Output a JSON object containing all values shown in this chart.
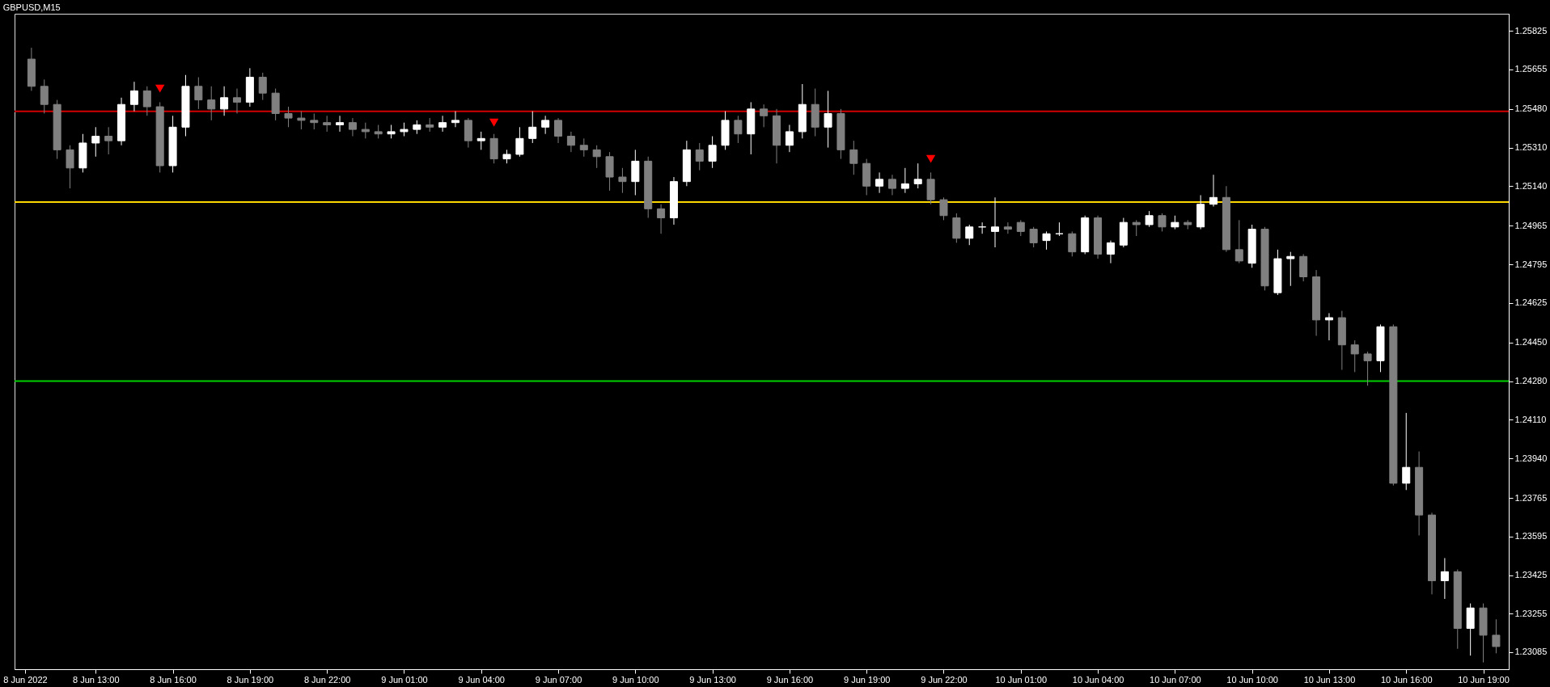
{
  "chart_data": {
    "type": "candlestick",
    "title": "GBPUSD,M15",
    "x": [
      "2022-06-08T10:30",
      "2022-06-08T11:00",
      "2022-06-08T11:30",
      "2022-06-08T12:00",
      "2022-06-08T12:30",
      "2022-06-08T13:00",
      "2022-06-08T13:30",
      "2022-06-08T14:00",
      "2022-06-08T14:30",
      "2022-06-08T15:00",
      "2022-06-08T15:30",
      "2022-06-08T16:00",
      "2022-06-08T16:30",
      "2022-06-08T17:00",
      "2022-06-08T17:30",
      "2022-06-08T18:00",
      "2022-06-08T18:30",
      "2022-06-08T19:00",
      "2022-06-08T19:30",
      "2022-06-08T20:00",
      "2022-06-08T20:30",
      "2022-06-08T21:00",
      "2022-06-08T21:30",
      "2022-06-08T22:00",
      "2022-06-08T22:30",
      "2022-06-08T23:00",
      "2022-06-08T23:30",
      "2022-06-09T00:00",
      "2022-06-09T00:30",
      "2022-06-09T01:00",
      "2022-06-09T01:30",
      "2022-06-09T02:00",
      "2022-06-09T02:30",
      "2022-06-09T03:00",
      "2022-06-09T03:30",
      "2022-06-09T04:00",
      "2022-06-09T04:30",
      "2022-06-09T05:00",
      "2022-06-09T05:30",
      "2022-06-09T06:00",
      "2022-06-09T06:30",
      "2022-06-09T07:00",
      "2022-06-09T07:30",
      "2022-06-09T08:00",
      "2022-06-09T08:30",
      "2022-06-09T09:00",
      "2022-06-09T09:30",
      "2022-06-09T10:00",
      "2022-06-09T10:30",
      "2022-06-09T11:00",
      "2022-06-09T11:30",
      "2022-06-09T12:00",
      "2022-06-09T12:30",
      "2022-06-09T13:00",
      "2022-06-09T13:30",
      "2022-06-09T14:00",
      "2022-06-09T14:30",
      "2022-06-09T15:00",
      "2022-06-09T15:30",
      "2022-06-09T16:00",
      "2022-06-09T16:30",
      "2022-06-09T17:00",
      "2022-06-09T17:30",
      "2022-06-09T18:00",
      "2022-06-09T18:30",
      "2022-06-09T19:00",
      "2022-06-09T19:30",
      "2022-06-09T20:00",
      "2022-06-09T20:30",
      "2022-06-09T21:00",
      "2022-06-09T21:30",
      "2022-06-09T22:00",
      "2022-06-09T22:30",
      "2022-06-09T23:00",
      "2022-06-09T23:30",
      "2022-06-10T00:00",
      "2022-06-10T00:30",
      "2022-06-10T01:00",
      "2022-06-10T01:30",
      "2022-06-10T02:00",
      "2022-06-10T02:30",
      "2022-06-10T03:00",
      "2022-06-10T03:30",
      "2022-06-10T04:00",
      "2022-06-10T04:30",
      "2022-06-10T05:00",
      "2022-06-10T05:30",
      "2022-06-10T06:00",
      "2022-06-10T06:30",
      "2022-06-10T07:00",
      "2022-06-10T07:30",
      "2022-06-10T08:00",
      "2022-06-10T08:30",
      "2022-06-10T09:00",
      "2022-06-10T09:30",
      "2022-06-10T10:00",
      "2022-06-10T10:30",
      "2022-06-10T11:00",
      "2022-06-10T11:30",
      "2022-06-10T12:00",
      "2022-06-10T12:30",
      "2022-06-10T13:00",
      "2022-06-10T13:30",
      "2022-06-10T14:00",
      "2022-06-10T14:30",
      "2022-06-10T15:00",
      "2022-06-10T15:30",
      "2022-06-10T16:00",
      "2022-06-10T16:30",
      "2022-06-10T17:00",
      "2022-06-10T17:30",
      "2022-06-10T18:00",
      "2022-06-10T18:30",
      "2022-06-10T19:00",
      "2022-06-10T19:30"
    ],
    "ohlc": [
      [
        1.257,
        1.2575,
        1.2556,
        1.2558
      ],
      [
        1.2558,
        1.2561,
        1.2546,
        1.255
      ],
      [
        1.255,
        1.2552,
        1.2526,
        1.253
      ],
      [
        1.253,
        1.2532,
        1.2513,
        1.2522
      ],
      [
        1.2522,
        1.2537,
        1.252,
        1.2533
      ],
      [
        1.2533,
        1.254,
        1.2527,
        1.2536
      ],
      [
        1.2536,
        1.254,
        1.2528,
        1.2534
      ],
      [
        1.2534,
        1.2553,
        1.2532,
        1.255
      ],
      [
        1.255,
        1.256,
        1.2547,
        1.2556
      ],
      [
        1.2556,
        1.2558,
        1.2545,
        1.2549
      ],
      [
        1.2549,
        1.2551,
        1.252,
        1.2523
      ],
      [
        1.2523,
        1.2545,
        1.252,
        1.254
      ],
      [
        1.254,
        1.2563,
        1.2536,
        1.2558
      ],
      [
        1.2558,
        1.2562,
        1.2548,
        1.2552
      ],
      [
        1.2552,
        1.2558,
        1.2543,
        1.2548
      ],
      [
        1.2548,
        1.2558,
        1.2545,
        1.2553
      ],
      [
        1.2553,
        1.2557,
        1.2546,
        1.2551
      ],
      [
        1.2551,
        1.2566,
        1.2549,
        1.2562
      ],
      [
        1.2562,
        1.2564,
        1.2552,
        1.2555
      ],
      [
        1.2555,
        1.2557,
        1.2543,
        1.2546
      ],
      [
        1.2546,
        1.2549,
        1.254,
        1.2544
      ],
      [
        1.2544,
        1.2547,
        1.2539,
        1.2543
      ],
      [
        1.2543,
        1.2546,
        1.2539,
        1.2542
      ],
      [
        1.2542,
        1.2545,
        1.2538,
        1.2541
      ],
      [
        1.2541,
        1.2545,
        1.2538,
        1.2542
      ],
      [
        1.2542,
        1.2544,
        1.2536,
        1.2539
      ],
      [
        1.2539,
        1.2542,
        1.2535,
        1.2538
      ],
      [
        1.2538,
        1.2541,
        1.2535,
        1.2537
      ],
      [
        1.2537,
        1.2541,
        1.2535,
        1.2538
      ],
      [
        1.2538,
        1.2542,
        1.2536,
        1.2539
      ],
      [
        1.2539,
        1.2543,
        1.2537,
        1.2541
      ],
      [
        1.2541,
        1.2544,
        1.2538,
        1.254
      ],
      [
        1.254,
        1.2545,
        1.2538,
        1.2542
      ],
      [
        1.2542,
        1.2547,
        1.254,
        1.2543
      ],
      [
        1.2543,
        1.2544,
        1.2531,
        1.2534
      ],
      [
        1.2534,
        1.2538,
        1.253,
        1.2535
      ],
      [
        1.2535,
        1.2537,
        1.2524,
        1.2526
      ],
      [
        1.2526,
        1.253,
        1.2524,
        1.2528
      ],
      [
        1.2528,
        1.254,
        1.2527,
        1.2535
      ],
      [
        1.2535,
        1.2547,
        1.2533,
        1.254
      ],
      [
        1.254,
        1.2545,
        1.2537,
        1.2543
      ],
      [
        1.2543,
        1.2544,
        1.2533,
        1.2536
      ],
      [
        1.2536,
        1.2538,
        1.2529,
        1.2532
      ],
      [
        1.2532,
        1.2535,
        1.2527,
        1.253
      ],
      [
        1.253,
        1.2532,
        1.2522,
        1.2527
      ],
      [
        1.2527,
        1.2529,
        1.2512,
        1.2518
      ],
      [
        1.2518,
        1.2522,
        1.2511,
        1.2516
      ],
      [
        1.2516,
        1.253,
        1.251,
        1.2525
      ],
      [
        1.2525,
        1.2527,
        1.25,
        1.2504
      ],
      [
        1.2504,
        1.2506,
        1.2493,
        1.25
      ],
      [
        1.25,
        1.2518,
        1.2497,
        1.2516
      ],
      [
        1.2516,
        1.2534,
        1.2514,
        1.253
      ],
      [
        1.253,
        1.2533,
        1.2521,
        1.2525
      ],
      [
        1.2525,
        1.2536,
        1.2522,
        1.2532
      ],
      [
        1.2532,
        1.2547,
        1.253,
        1.2543
      ],
      [
        1.2543,
        1.2545,
        1.2533,
        1.2537
      ],
      [
        1.2537,
        1.2551,
        1.2528,
        1.2548
      ],
      [
        1.2548,
        1.255,
        1.254,
        1.2545
      ],
      [
        1.2545,
        1.2548,
        1.2524,
        1.2532
      ],
      [
        1.2532,
        1.2541,
        1.2529,
        1.2538
      ],
      [
        1.2538,
        1.2559,
        1.2535,
        1.255
      ],
      [
        1.255,
        1.2557,
        1.2536,
        1.254
      ],
      [
        1.254,
        1.2556,
        1.2531,
        1.2546
      ],
      [
        1.2546,
        1.2548,
        1.2526,
        1.253
      ],
      [
        1.253,
        1.2534,
        1.2519,
        1.2524
      ],
      [
        1.2524,
        1.2526,
        1.251,
        1.2514
      ],
      [
        1.2514,
        1.252,
        1.2511,
        1.2517
      ],
      [
        1.2517,
        1.2519,
        1.251,
        1.2513
      ],
      [
        1.2513,
        1.2522,
        1.2511,
        1.2515
      ],
      [
        1.2515,
        1.2524,
        1.2513,
        1.2517
      ],
      [
        1.2517,
        1.252,
        1.2506,
        1.2508
      ],
      [
        1.2508,
        1.2509,
        1.2499,
        1.2501
      ],
      [
        1.25,
        1.2502,
        1.2489,
        1.2491
      ],
      [
        1.2491,
        1.2497,
        1.2488,
        1.2496
      ],
      [
        1.2496,
        1.2498,
        1.2493,
        1.2496
      ],
      [
        1.2494,
        1.2509,
        1.2487,
        1.2496
      ],
      [
        1.2496,
        1.2498,
        1.2493,
        1.2495
      ],
      [
        1.2498,
        1.2499,
        1.2492,
        1.2494
      ],
      [
        1.2495,
        1.2496,
        1.2487,
        1.2489
      ],
      [
        1.249,
        1.2494,
        1.2486,
        1.2493
      ],
      [
        1.2493,
        1.2498,
        1.2492,
        1.2493
      ],
      [
        1.2493,
        1.2494,
        1.2483,
        1.2485
      ],
      [
        1.2485,
        1.2501,
        1.2484,
        1.25
      ],
      [
        1.25,
        1.2501,
        1.2482,
        1.2484
      ],
      [
        1.2484,
        1.249,
        1.248,
        1.2489
      ],
      [
        1.2488,
        1.25,
        1.2487,
        1.2498
      ],
      [
        1.2498,
        1.2499,
        1.2492,
        1.2497
      ],
      [
        1.2497,
        1.2503,
        1.2496,
        1.2501
      ],
      [
        1.2501,
        1.2502,
        1.2494,
        1.2496
      ],
      [
        1.2496,
        1.2501,
        1.2495,
        1.2498
      ],
      [
        1.2498,
        1.2499,
        1.2495,
        1.2497
      ],
      [
        1.2496,
        1.251,
        1.2495,
        1.2506
      ],
      [
        1.2506,
        1.2519,
        1.2505,
        1.2509
      ],
      [
        1.2509,
        1.2514,
        1.2485,
        1.2486
      ],
      [
        1.2486,
        1.2499,
        1.248,
        1.2481
      ],
      [
        1.248,
        1.2497,
        1.2478,
        1.2495
      ],
      [
        1.2495,
        1.2496,
        1.2468,
        1.247
      ],
      [
        1.2467,
        1.2486,
        1.2466,
        1.2482
      ],
      [
        1.2482,
        1.2485,
        1.247,
        1.2483
      ],
      [
        1.2483,
        1.2484,
        1.2472,
        1.2474
      ],
      [
        1.2474,
        1.2477,
        1.2448,
        1.2455
      ],
      [
        1.2455,
        1.2458,
        1.2446,
        1.2456
      ],
      [
        1.2456,
        1.2459,
        1.2433,
        1.2444
      ],
      [
        1.2444,
        1.2446,
        1.2432,
        1.244
      ],
      [
        1.244,
        1.2441,
        1.2426,
        1.2437
      ],
      [
        1.2437,
        1.2453,
        1.2432,
        1.2452
      ],
      [
        1.2452,
        1.2453,
        1.2382,
        1.2383
      ],
      [
        1.2383,
        1.2414,
        1.238,
        1.239
      ],
      [
        1.239,
        1.2397,
        1.236,
        1.2369
      ],
      [
        1.2369,
        1.237,
        1.2334,
        1.234
      ],
      [
        1.234,
        1.235,
        1.2332,
        1.2344
      ],
      [
        1.2344,
        1.2345,
        1.231,
        1.2319
      ],
      [
        1.2319,
        1.233,
        1.2307,
        1.2328
      ],
      [
        1.2328,
        1.233,
        1.2304,
        1.2316
      ],
      [
        1.2316,
        1.2323,
        1.2308,
        1.2311
      ]
    ],
    "colors": [
      "#808080",
      "#808080",
      "#808080",
      "#808080",
      "#ffffff",
      "#ffffff",
      "#808080",
      "#ffffff",
      "#ffffff",
      "#808080",
      "#808080",
      "#ffffff",
      "#ffffff",
      "#808080",
      "#808080",
      "#ffffff",
      "#808080",
      "#ffffff",
      "#808080",
      "#808080",
      "#808080",
      "#808080",
      "#808080",
      "#808080",
      "#ffffff",
      "#808080",
      "#808080",
      "#808080",
      "#ffffff",
      "#ffffff",
      "#ffffff",
      "#808080",
      "#ffffff",
      "#ffffff",
      "#808080",
      "#ffffff",
      "#808080",
      "#ffffff",
      "#ffffff",
      "#ffffff",
      "#ffffff",
      "#808080",
      "#808080",
      "#808080",
      "#808080",
      "#808080",
      "#808080",
      "#ffffff",
      "#808080",
      "#808080",
      "#ffffff",
      "#ffffff",
      "#808080",
      "#ffffff",
      "#ffffff",
      "#808080",
      "#ffffff",
      "#808080",
      "#808080",
      "#ffffff",
      "#ffffff",
      "#808080",
      "#ffffff",
      "#808080",
      "#808080",
      "#808080",
      "#ffffff",
      "#808080",
      "#ffffff",
      "#ffffff",
      "#808080",
      "#808080",
      "#808080",
      "#ffffff",
      "#ffffff",
      "#ffffff",
      "#808080",
      "#808080",
      "#808080",
      "#ffffff",
      "#ffffff",
      "#808080",
      "#ffffff",
      "#808080",
      "#ffffff",
      "#ffffff",
      "#808080",
      "#ffffff",
      "#808080",
      "#ffffff",
      "#808080",
      "#ffffff",
      "#ffffff",
      "#808080",
      "#808080",
      "#ffffff",
      "#808080",
      "#ffffff",
      "#ffffff",
      "#808080",
      "#808080",
      "#ffffff",
      "#808080",
      "#808080",
      "#808080",
      "#ffffff",
      "#808080",
      "#ffffff",
      "#808080",
      "#808080",
      "#ffffff",
      "#808080",
      "#ffffff",
      "#808080",
      "#808080"
    ],
    "xlim": [
      "2022-06-08T10:00",
      "2022-06-10T19:50"
    ],
    "xticks": [
      {
        "value": "2022-06-08T10:15",
        "label": "8 Jun 2022"
      },
      {
        "value": "2022-06-08T13:00",
        "label": "8 Jun 13:00"
      },
      {
        "value": "2022-06-08T16:00",
        "label": "8 Jun 16:00"
      },
      {
        "value": "2022-06-08T19:00",
        "label": "8 Jun 19:00"
      },
      {
        "value": "2022-06-08T22:00",
        "label": "8 Jun 22:00"
      },
      {
        "value": "2022-06-09T01:00",
        "label": "9 Jun 01:00"
      },
      {
        "value": "2022-06-09T04:00",
        "label": "9 Jun 04:00"
      },
      {
        "value": "2022-06-09T07:00",
        "label": "9 Jun 07:00"
      },
      {
        "value": "2022-06-09T10:00",
        "label": "9 Jun 10:00"
      },
      {
        "value": "2022-06-09T13:00",
        "label": "9 Jun 13:00"
      },
      {
        "value": "2022-06-09T16:00",
        "label": "9 Jun 16:00"
      },
      {
        "value": "2022-06-09T19:00",
        "label": "9 Jun 19:00"
      },
      {
        "value": "2022-06-09T22:00",
        "label": "9 Jun 22:00"
      },
      {
        "value": "2022-06-10T01:00",
        "label": "10 Jun 01:00"
      },
      {
        "value": "2022-06-10T04:00",
        "label": "10 Jun 04:00"
      },
      {
        "value": "2022-06-10T07:00",
        "label": "10 Jun 07:00"
      },
      {
        "value": "2022-06-10T10:00",
        "label": "10 Jun 10:00"
      },
      {
        "value": "2022-06-10T13:00",
        "label": "10 Jun 13:00"
      },
      {
        "value": "2022-06-10T16:00",
        "label": "10 Jun 16:00"
      },
      {
        "value": "2022-06-10T19:00",
        "label": "10 Jun 19:00"
      }
    ],
    "ylim": [
      1.2301,
      1.259
    ],
    "yticks": [
      {
        "value": 1.23085,
        "label": "1.23085"
      },
      {
        "value": 1.23255,
        "label": "1.23255"
      },
      {
        "value": 1.23425,
        "label": "1.23425"
      },
      {
        "value": 1.23595,
        "label": "1.23595"
      },
      {
        "value": 1.23765,
        "label": "1.23765"
      },
      {
        "value": 1.2394,
        "label": "1.23940"
      },
      {
        "value": 1.2411,
        "label": "1.24110"
      },
      {
        "value": 1.2428,
        "label": "1.24280"
      },
      {
        "value": 1.2445,
        "label": "1.24450"
      },
      {
        "value": 1.24625,
        "label": "1.24625"
      },
      {
        "value": 1.24795,
        "label": "1.24795"
      },
      {
        "value": 1.24965,
        "label": "1.24965"
      },
      {
        "value": 1.2514,
        "label": "1.25140"
      },
      {
        "value": 1.2531,
        "label": "1.25310"
      },
      {
        "value": 1.2548,
        "label": "1.25480"
      },
      {
        "value": 1.25655,
        "label": "1.25655"
      },
      {
        "value": 1.25825,
        "label": "1.25825"
      }
    ],
    "grid": false,
    "ref_lines": [
      {
        "axis": "y",
        "value": 1.2547,
        "color": "#d00000"
      },
      {
        "axis": "y",
        "value": 1.2507,
        "color": "#ffd700"
      },
      {
        "axis": "y",
        "value": 1.2428,
        "color": "#00d000"
      }
    ],
    "series": [
      {
        "type": "scatter",
        "color": "#ff0000",
        "marker": "triangle",
        "x": [
          "2022-06-08T15:30",
          "2022-06-09T04:30",
          "2022-06-09T21:30"
        ],
        "values": [
          1.2557,
          1.2542,
          1.2526
        ]
      }
    ]
  }
}
